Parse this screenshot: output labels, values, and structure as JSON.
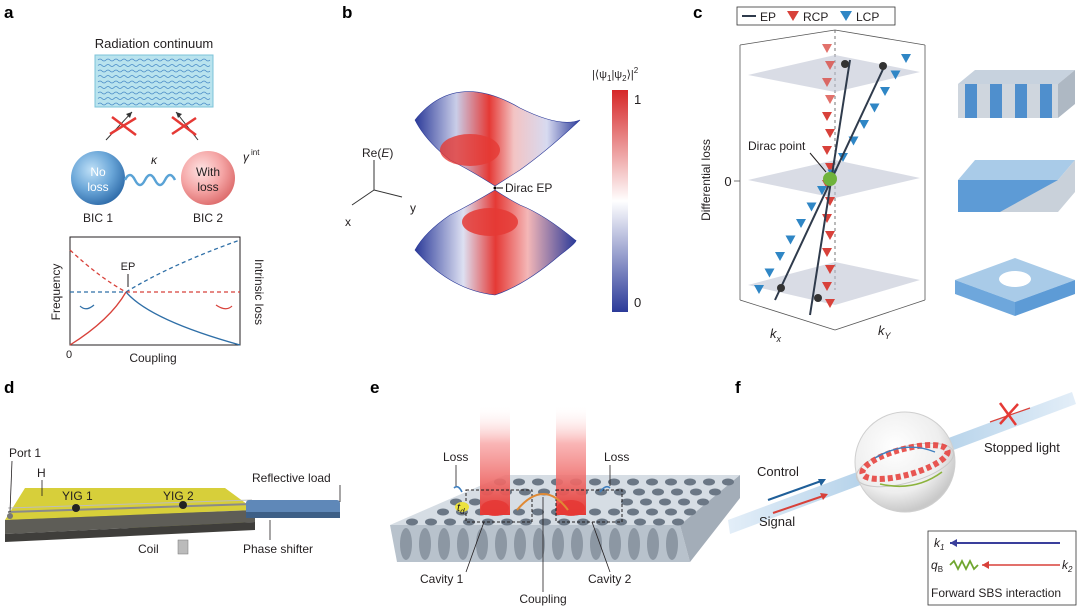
{
  "panels": {
    "a": {
      "letter": "a",
      "radiation": "Radiation continuum",
      "kappa": "κ",
      "gamma": "γ",
      "gamma_sup": "int",
      "ball1_line1": "No",
      "ball1_line2": "loss",
      "ball2_line1": "With",
      "ball2_line2": "loss",
      "bic1": "BIC 1",
      "bic2": "BIC 2",
      "ep": "EP",
      "frequency": "Frequency",
      "intrinsic_loss": "Intrinsic loss",
      "coupling": "Coupling",
      "zero": "0"
    },
    "b": {
      "letter": "b",
      "re_e": "Re(",
      "re_e_var": "E",
      "re_e_close": ")",
      "x": "x",
      "y": "y",
      "dirac_ep": "Dirac EP",
      "colorbar_title": "|⟨ψ",
      "colorbar_max": "1",
      "colorbar_min": "0"
    },
    "c": {
      "letter": "c",
      "legend": [
        "EP",
        "RCP",
        "LCP"
      ],
      "differential_loss": "Differential loss",
      "dirac_point": "Dirac point",
      "zero": "0",
      "kx": "k",
      "kx_sub": "x",
      "ky": "k",
      "ky_sub": "Y"
    },
    "d": {
      "letter": "d",
      "port1": "Port 1",
      "h": "H",
      "yig1": "YIG 1",
      "yig2": "YIG 2",
      "reflective_load": "Reflective load",
      "coil": "Coil",
      "phase_shifter": "Phase shifter"
    },
    "e": {
      "letter": "e",
      "loss_left": "Loss",
      "loss_right": "Loss",
      "td": "t",
      "td_sub": "d",
      "cavity1": "Cavity 1",
      "cavity2": "Cavity 2",
      "coupling": "Coupling"
    },
    "f": {
      "letter": "f",
      "control": "Control",
      "signal": "Signal",
      "stopped_light": "Stopped light",
      "k1": "k",
      "k1_sub": "1",
      "qb": "q",
      "qb_sub": "B",
      "k2": "k",
      "k2_sub": "2",
      "sbs": "Forward SBS interaction"
    }
  },
  "colors": {
    "blue": "#2f6fa7",
    "red": "#d8413a",
    "yellow": "#d7cf3a",
    "green": "#6fb33c",
    "beam": "#e53935"
  }
}
